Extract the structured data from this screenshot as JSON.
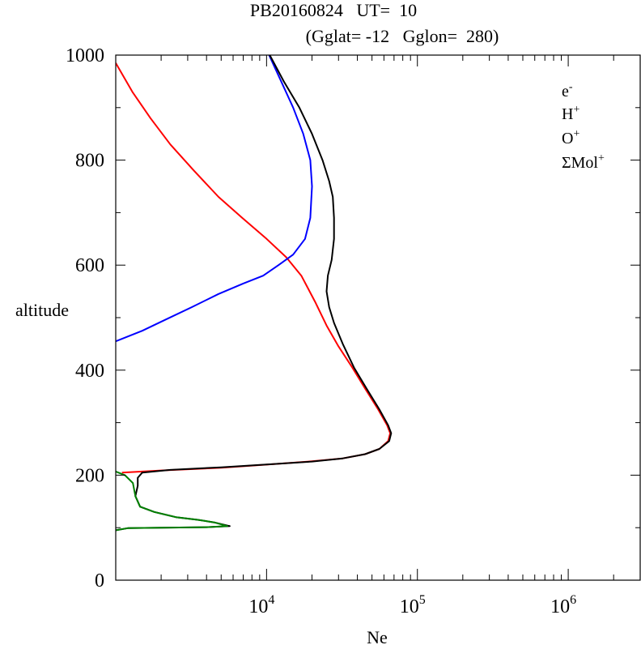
{
  "chart_data": {
    "type": "line",
    "title_line1": "PB20160824   UT=  10",
    "title_line2": "(Gglat= -12   Gglon=  280)",
    "xlabel": "Ne",
    "ylabel": "altitude",
    "xscale": "log",
    "xlim": [
      1000,
      3000000
    ],
    "ylim": [
      0,
      1000
    ],
    "y_ticks": [
      0,
      200,
      400,
      600,
      800,
      1000
    ],
    "y_tick_labels": [
      "0",
      "200",
      "400",
      "600",
      "800",
      "1000"
    ],
    "x_ticks": [
      10000,
      100000,
      1000000
    ],
    "x_tick_labels": [
      {
        "base": "10",
        "exp": "4"
      },
      {
        "base": "10",
        "exp": "5"
      },
      {
        "base": "10",
        "exp": "6"
      }
    ],
    "legend_position": "top-right",
    "legend": [
      {
        "base": "e",
        "sup": "-",
        "color": "#000000"
      },
      {
        "base": "H",
        "sup": "+",
        "color": "#0000ff"
      },
      {
        "base": "O",
        "sup": "+",
        "color": "#ff0000"
      },
      {
        "base": "ΣMol",
        "sup": "+",
        "color": "#008000"
      }
    ],
    "series": [
      {
        "name": "O+",
        "color": "#ff0000",
        "points": [
          [
            1000,
            985
          ],
          [
            1290,
            930
          ],
          [
            1700,
            880
          ],
          [
            2300,
            830
          ],
          [
            3300,
            780
          ],
          [
            4800,
            730
          ],
          [
            6900,
            690
          ],
          [
            10000,
            650
          ],
          [
            13500,
            615
          ],
          [
            17000,
            580
          ],
          [
            21000,
            530
          ],
          [
            25000,
            485
          ],
          [
            30000,
            445
          ],
          [
            37000,
            405
          ],
          [
            45000,
            365
          ],
          [
            55000,
            325
          ],
          [
            63000,
            295
          ],
          [
            66000,
            280
          ],
          [
            64000,
            265
          ],
          [
            56000,
            250
          ],
          [
            45000,
            240
          ],
          [
            32000,
            232
          ],
          [
            19000,
            226
          ],
          [
            10000,
            220
          ],
          [
            5000,
            214
          ],
          [
            2000,
            209
          ],
          [
            1100,
            205
          ]
        ]
      },
      {
        "name": "H+",
        "color": "#0000ff",
        "points": [
          [
            10400,
            1000
          ],
          [
            12500,
            950
          ],
          [
            15000,
            900
          ],
          [
            17500,
            850
          ],
          [
            19500,
            800
          ],
          [
            20000,
            750
          ],
          [
            19500,
            690
          ],
          [
            18000,
            650
          ],
          [
            15000,
            620
          ],
          [
            12000,
            600
          ],
          [
            9500,
            580
          ],
          [
            7000,
            565
          ],
          [
            4800,
            545
          ],
          [
            3200,
            520
          ],
          [
            2100,
            495
          ],
          [
            1500,
            475
          ],
          [
            1000,
            455
          ]
        ]
      },
      {
        "name": "e-",
        "color": "#000000",
        "points": [
          [
            10500,
            1000
          ],
          [
            13000,
            950
          ],
          [
            16500,
            900
          ],
          [
            20000,
            850
          ],
          [
            23500,
            800
          ],
          [
            26000,
            760
          ],
          [
            27500,
            730
          ],
          [
            28000,
            690
          ],
          [
            28000,
            650
          ],
          [
            27000,
            610
          ],
          [
            25500,
            580
          ],
          [
            25000,
            550
          ],
          [
            26000,
            520
          ],
          [
            28000,
            490
          ],
          [
            32000,
            450
          ],
          [
            38000,
            405
          ],
          [
            46000,
            365
          ],
          [
            56000,
            325
          ],
          [
            64000,
            295
          ],
          [
            67000,
            280
          ],
          [
            65000,
            265
          ],
          [
            56000,
            250
          ],
          [
            45000,
            240
          ],
          [
            32000,
            232
          ],
          [
            20000,
            226
          ],
          [
            11000,
            221
          ],
          [
            5000,
            215
          ],
          [
            2300,
            210
          ],
          [
            1500,
            205
          ],
          [
            1400,
            195
          ],
          [
            1400,
            180
          ],
          [
            1350,
            160
          ],
          [
            1450,
            140
          ],
          [
            1800,
            130
          ],
          [
            2500,
            120
          ],
          [
            3500,
            115
          ],
          [
            4500,
            110
          ],
          [
            5700,
            103
          ],
          [
            4000,
            101
          ],
          [
            2000,
            100
          ],
          [
            1200,
            99
          ],
          [
            1000,
            95
          ]
        ]
      },
      {
        "name": "ΣMol+",
        "color": "#008000",
        "points": [
          [
            1000,
            207
          ],
          [
            1150,
            200
          ],
          [
            1300,
            185
          ],
          [
            1350,
            160
          ],
          [
            1450,
            140
          ],
          [
            1800,
            130
          ],
          [
            2500,
            120
          ],
          [
            3500,
            115
          ],
          [
            4500,
            110
          ],
          [
            5500,
            103
          ],
          [
            4000,
            101
          ],
          [
            2000,
            100
          ],
          [
            1200,
            99
          ],
          [
            1000,
            95
          ]
        ]
      }
    ]
  }
}
